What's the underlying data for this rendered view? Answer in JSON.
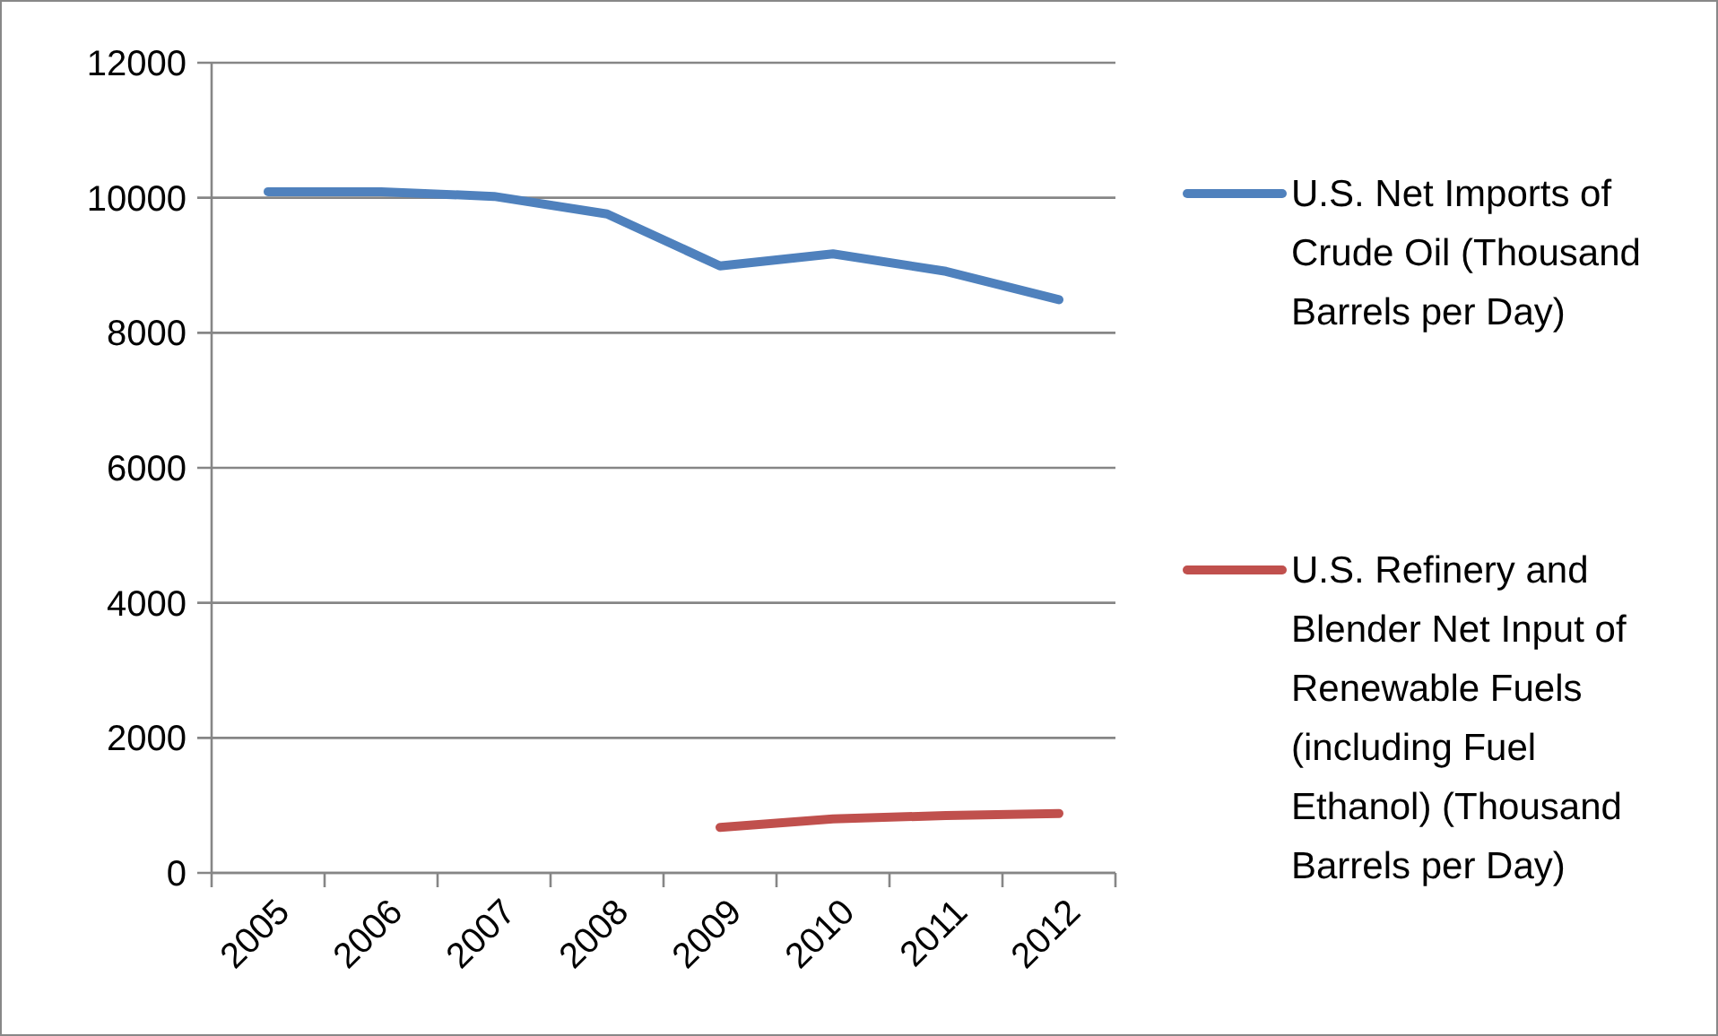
{
  "chart_data": {
    "type": "line",
    "categories": [
      "2005",
      "2006",
      "2007",
      "2008",
      "2009",
      "2010",
      "2011",
      "2012"
    ],
    "series": [
      {
        "name": "U.S. Net Imports of Crude Oil (Thousand Barrels per Day)",
        "color": "#4f81bd",
        "values": [
          10090,
          10090,
          10020,
          9760,
          8990,
          9170,
          8910,
          8490
        ]
      },
      {
        "name": "U.S. Refinery and Blender Net Input of Renewable Fuels (including Fuel Ethanol) (Thousand Barrels per Day)",
        "color": "#c0504d",
        "values": [
          null,
          null,
          null,
          null,
          675,
          800,
          850,
          880
        ]
      }
    ],
    "ylim": [
      0,
      12000
    ],
    "yticks": [
      0,
      2000,
      4000,
      6000,
      8000,
      10000,
      12000
    ],
    "grid": "y",
    "legend": "right",
    "marker": "none",
    "line_style": "solid"
  }
}
